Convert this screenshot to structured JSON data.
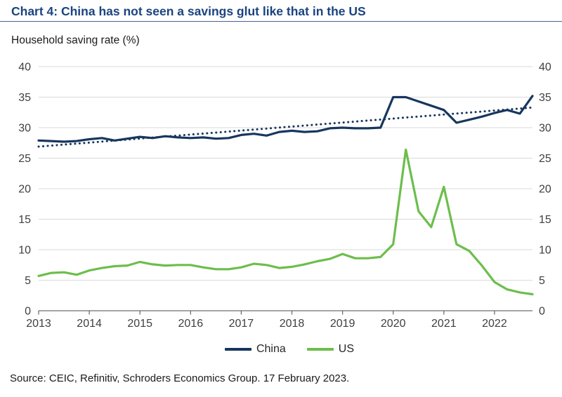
{
  "header": {
    "title": "Chart 4: China has not seen a savings glut like that in the US",
    "subtitle": "Household saving rate (%)"
  },
  "source": "Source: CEIC, Refinitiv, Schroders Economics Group. 17 February 2023.",
  "legend": [
    {
      "label": "China",
      "color": "#17365d"
    },
    {
      "label": "US",
      "color": "#6cbe4c"
    }
  ],
  "colors": {
    "title_navy": "#1a4480",
    "china_line": "#17365d",
    "us_line": "#6cbe4c",
    "trend_dotted": "#17365d",
    "gridline": "#d9d9d9",
    "axis": "#6e6e6e",
    "axis_text": "#3f3f3f"
  },
  "chart_data": {
    "type": "line",
    "title": "Chart 4: China has not seen a savings glut like that in the US",
    "ylabel": "Household saving rate (%)",
    "ylim": [
      0,
      40
    ],
    "y_ticks": [
      0,
      5,
      10,
      15,
      20,
      25,
      30,
      35,
      40
    ],
    "dual_y_axis": true,
    "grid": "horizontal",
    "legend_position": "bottom-center",
    "x_labels": [
      "2013",
      "2014",
      "2015",
      "2016",
      "2017",
      "2018",
      "2019",
      "2020",
      "2021",
      "2022"
    ],
    "points_per_year": 4,
    "x_range_note": "quarterly, 2013 Q1 to 2022 Q4",
    "series": [
      {
        "name": "China trend",
        "style": "dotted",
        "color": "#17365d",
        "x": [
          0,
          39
        ],
        "values": [
          26.9,
          33.3
        ]
      },
      {
        "name": "China",
        "style": "solid",
        "color": "#17365d",
        "values": [
          27.9,
          27.8,
          27.7,
          27.8,
          28.1,
          28.3,
          27.9,
          28.2,
          28.5,
          28.3,
          28.6,
          28.4,
          28.3,
          28.4,
          28.2,
          28.3,
          28.8,
          29.0,
          28.7,
          29.3,
          29.5,
          29.3,
          29.4,
          29.9,
          30.0,
          29.9,
          29.9,
          30.0,
          35.0,
          35.0,
          34.3,
          33.6,
          32.9,
          30.8,
          31.3,
          31.8,
          32.4,
          32.9,
          32.3,
          35.2
        ]
      },
      {
        "name": "US",
        "style": "solid",
        "color": "#6cbe4c",
        "values": [
          5.7,
          6.2,
          6.3,
          5.9,
          6.6,
          7.0,
          7.3,
          7.4,
          8.0,
          7.6,
          7.4,
          7.5,
          7.5,
          7.1,
          6.8,
          6.8,
          7.1,
          7.7,
          7.5,
          7.0,
          7.2,
          7.6,
          8.1,
          8.5,
          9.3,
          8.6,
          8.6,
          8.8,
          10.9,
          26.4,
          16.3,
          13.7,
          20.3,
          10.9,
          9.8,
          7.4,
          4.7,
          3.5,
          3.0,
          2.7
        ]
      }
    ]
  }
}
